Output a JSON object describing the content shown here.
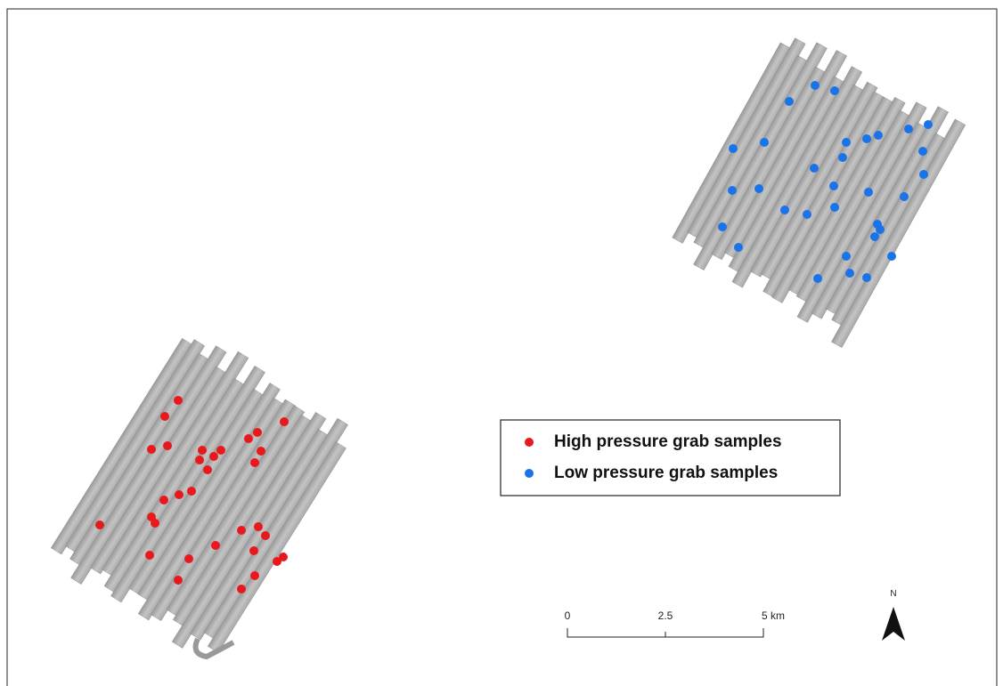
{
  "legend": {
    "items": [
      {
        "label": "High pressure grab samples",
        "color": "#e8191c"
      },
      {
        "label": "Low pressure grab samples",
        "color": "#1a73e8"
      }
    ]
  },
  "scale_bar": {
    "labels": [
      "0",
      "2.5",
      "5 km"
    ]
  },
  "north_arrow": {
    "label": "N"
  }
}
